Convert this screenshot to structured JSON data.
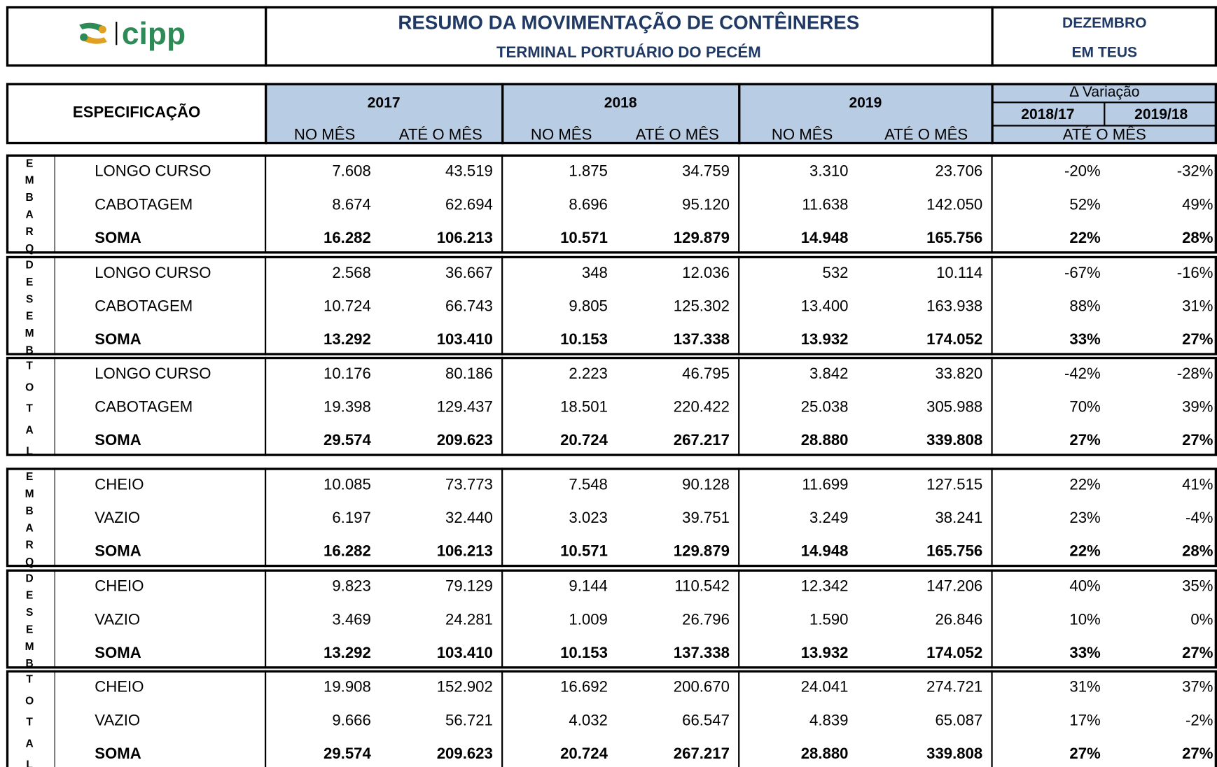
{
  "header": {
    "logo_text": "cipp",
    "title": "RESUMO DA MOVIMENTAÇÃO DE CONTÊINERES",
    "subtitle": "TERMINAL PORTUÁRIO DO PECÉM",
    "month": "DEZEMBRO",
    "unit": "EM TEUS"
  },
  "table": {
    "spec_header": "ESPECIFICAÇÃO",
    "years": [
      "2017",
      "2018",
      "2019"
    ],
    "no_mes": "NO MÊS",
    "ate_mes": "ATÉ O MÊS",
    "variation_header": "Δ Variação",
    "variation_cols": [
      "2018/17",
      "2019/18"
    ],
    "variation_sub": "ATÉ O MÊS",
    "groups": [
      {
        "letters": [
          "E",
          "M",
          "B",
          "A",
          "R",
          "Q"
        ],
        "rows": [
          {
            "label": "LONGO CURSO",
            "values": [
              "7.608",
              "43.519",
              "1.875",
              "34.759",
              "3.310",
              "23.706",
              "-20%",
              "-32%"
            ]
          },
          {
            "label": "CABOTAGEM",
            "values": [
              "8.674",
              "62.694",
              "8.696",
              "95.120",
              "11.638",
              "142.050",
              "52%",
              "49%"
            ]
          },
          {
            "label": "SOMA",
            "values": [
              "16.282",
              "106.213",
              "10.571",
              "129.879",
              "14.948",
              "165.756",
              "22%",
              "28%"
            ]
          }
        ]
      },
      {
        "letters": [
          "D",
          "E",
          "S",
          "E",
          "M",
          "B"
        ],
        "rows": [
          {
            "label": "LONGO CURSO",
            "values": [
              "2.568",
              "36.667",
              "348",
              "12.036",
              "532",
              "10.114",
              "-67%",
              "-16%"
            ]
          },
          {
            "label": "CABOTAGEM",
            "values": [
              "10.724",
              "66.743",
              "9.805",
              "125.302",
              "13.400",
              "163.938",
              "88%",
              "31%"
            ]
          },
          {
            "label": "SOMA",
            "values": [
              "13.292",
              "103.410",
              "10.153",
              "137.338",
              "13.932",
              "174.052",
              "33%",
              "27%"
            ]
          }
        ]
      },
      {
        "letters": [
          "T",
          "O",
          "T",
          "A",
          "L"
        ],
        "rows": [
          {
            "label": "LONGO CURSO",
            "values": [
              "10.176",
              "80.186",
              "2.223",
              "46.795",
              "3.842",
              "33.820",
              "-42%",
              "-28%"
            ]
          },
          {
            "label": "CABOTAGEM",
            "values": [
              "19.398",
              "129.437",
              "18.501",
              "220.422",
              "25.038",
              "305.988",
              "70%",
              "39%"
            ]
          },
          {
            "label": "SOMA",
            "values": [
              "29.574",
              "209.623",
              "20.724",
              "267.217",
              "28.880",
              "339.808",
              "27%",
              "27%"
            ]
          }
        ]
      },
      {
        "letters": [
          "E",
          "M",
          "B",
          "A",
          "R",
          "Q"
        ],
        "rows": [
          {
            "label": "CHEIO",
            "values": [
              "10.085",
              "73.773",
              "7.548",
              "90.128",
              "11.699",
              "127.515",
              "22%",
              "41%"
            ]
          },
          {
            "label": "VAZIO",
            "values": [
              "6.197",
              "32.440",
              "3.023",
              "39.751",
              "3.249",
              "38.241",
              "23%",
              "-4%"
            ]
          },
          {
            "label": "SOMA",
            "values": [
              "16.282",
              "106.213",
              "10.571",
              "129.879",
              "14.948",
              "165.756",
              "22%",
              "28%"
            ]
          }
        ]
      },
      {
        "letters": [
          "D",
          "E",
          "S",
          "E",
          "M",
          "B"
        ],
        "rows": [
          {
            "label": "CHEIO",
            "values": [
              "9.823",
              "79.129",
              "9.144",
              "110.542",
              "12.342",
              "147.206",
              "40%",
              "35%"
            ]
          },
          {
            "label": "VAZIO",
            "values": [
              "3.469",
              "24.281",
              "1.009",
              "26.796",
              "1.590",
              "26.846",
              "10%",
              "0%"
            ]
          },
          {
            "label": "SOMA",
            "values": [
              "13.292",
              "103.410",
              "10.153",
              "137.338",
              "13.932",
              "174.052",
              "33%",
              "27%"
            ]
          }
        ]
      },
      {
        "letters": [
          "T",
          "O",
          "T",
          "A",
          "L"
        ],
        "rows": [
          {
            "label": "CHEIO",
            "values": [
              "19.908",
              "152.902",
              "16.692",
              "200.670",
              "24.041",
              "274.721",
              "31%",
              "37%"
            ]
          },
          {
            "label": "VAZIO",
            "values": [
              "9.666",
              "56.721",
              "4.032",
              "66.547",
              "4.839",
              "65.087",
              "17%",
              "-2%"
            ]
          },
          {
            "label": "SOMA",
            "values": [
              "29.574",
              "209.623",
              "20.724",
              "267.217",
              "28.880",
              "339.808",
              "27%",
              "27%"
            ]
          }
        ]
      }
    ]
  }
}
